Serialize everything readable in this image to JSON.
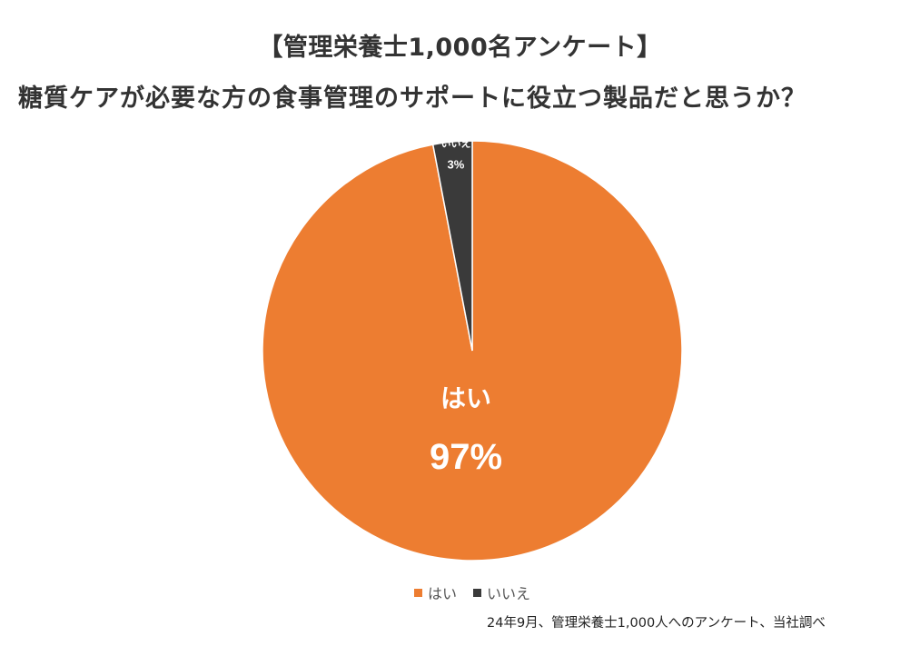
{
  "title_line1": "【管理栄養士1,000名アンケート】",
  "title_line2": "糖質ケアが必要な方の食事管理のサポートに役立つ製品だと思うか？",
  "note": "24年9月、管理栄養士1,000人へのアンケート、当社調べ",
  "chart_data": {
    "type": "pie",
    "title": "【管理栄養士1,000名アンケート】 糖質ケアが必要な方の食事管理のサポートに役立つ製品だと思うか？",
    "slices": [
      {
        "label": "はい",
        "value": 97,
        "display": "97%",
        "color": "#ED7D31"
      },
      {
        "label": "いいえ",
        "value": 3,
        "display": "3%",
        "color": "#3A3A3A"
      }
    ],
    "legend": [
      "はい",
      "いいえ"
    ],
    "legend_position": "bottom"
  }
}
